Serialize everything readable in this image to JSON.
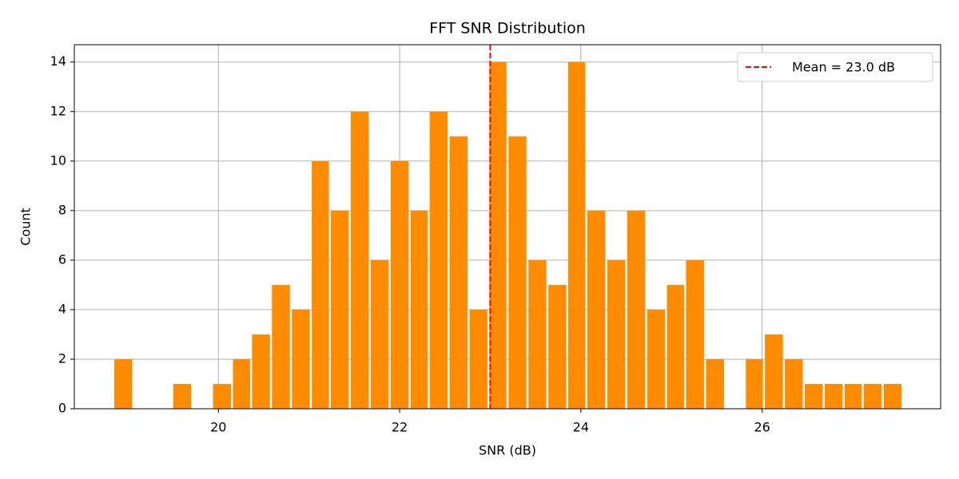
{
  "chart_data": {
    "type": "histogram",
    "title": "FFT SNR Distribution",
    "x_label": "SNR (dB)",
    "y_label": "Count",
    "bins": [
      18.84,
      19.06,
      19.28,
      19.49,
      19.71,
      19.93,
      20.15,
      20.36,
      20.58,
      20.8,
      21.02,
      21.23,
      21.45,
      21.67,
      21.89,
      22.11,
      22.32,
      22.54,
      22.76,
      22.98,
      23.19,
      23.41,
      23.63,
      23.85,
      24.06,
      24.28,
      24.5,
      24.72,
      24.94,
      25.15,
      25.37,
      25.59,
      25.81,
      26.02,
      26.24,
      26.46,
      26.68,
      26.9,
      27.11,
      27.33,
      27.55
    ],
    "values": [
      2,
      0,
      0,
      1,
      0,
      1,
      2,
      3,
      5,
      4,
      10,
      8,
      12,
      6,
      10,
      8,
      12,
      11,
      4,
      14,
      11,
      6,
      5,
      14,
      8,
      6,
      8,
      4,
      5,
      6,
      2,
      0,
      2,
      3,
      2,
      1,
      1,
      1,
      1,
      1
    ],
    "color": "#ff8c00",
    "mean_line": {
      "value": 23.0,
      "label": "Mean = 23.0 dB",
      "color": "#ff0000"
    },
    "xlim": [
      18.41,
      27.97
    ],
    "xticks": [
      20,
      22,
      24,
      26
    ],
    "ylim": [
      0,
      14.7
    ],
    "yticks": [
      0,
      2,
      4,
      6,
      8,
      10,
      12,
      14
    ],
    "grid": true,
    "legend": "upper right"
  }
}
